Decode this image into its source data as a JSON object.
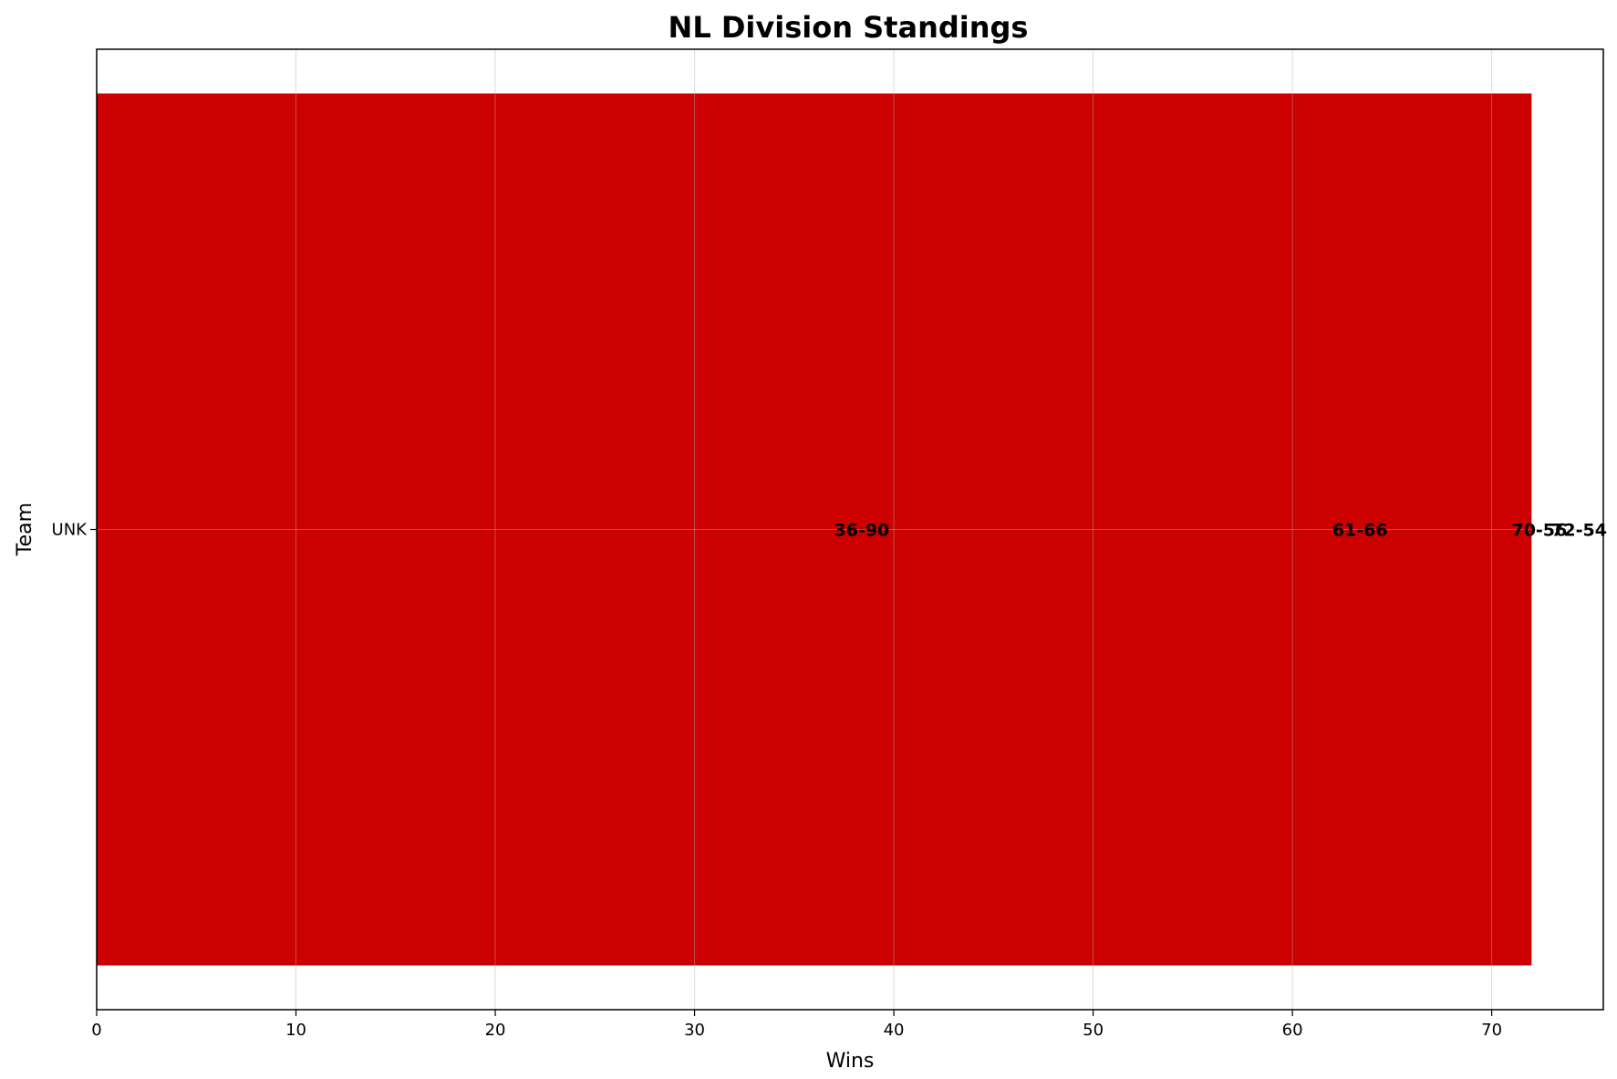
{
  "chart_data": {
    "type": "bar",
    "orientation": "horizontal",
    "title": "NL Division Standings",
    "xlabel": "Wins",
    "ylabel": "Team",
    "categories": [
      "UNK"
    ],
    "xlim": [
      0,
      75.6
    ],
    "xticks": [
      0,
      10,
      20,
      30,
      40,
      50,
      60,
      70
    ],
    "grid": true,
    "bar_color": "#cc0000",
    "overlapping_bars": [
      {
        "team": "UNK",
        "wins": 72,
        "losses": 54,
        "label": "72-54"
      },
      {
        "team": "UNK",
        "wins": 70,
        "losses": 56,
        "label": "70-56"
      },
      {
        "team": "UNK",
        "wins": 61,
        "losses": 66,
        "label": "61-66"
      },
      {
        "team": "UNK",
        "wins": 36,
        "losses": 90,
        "label": "36-90"
      }
    ]
  }
}
